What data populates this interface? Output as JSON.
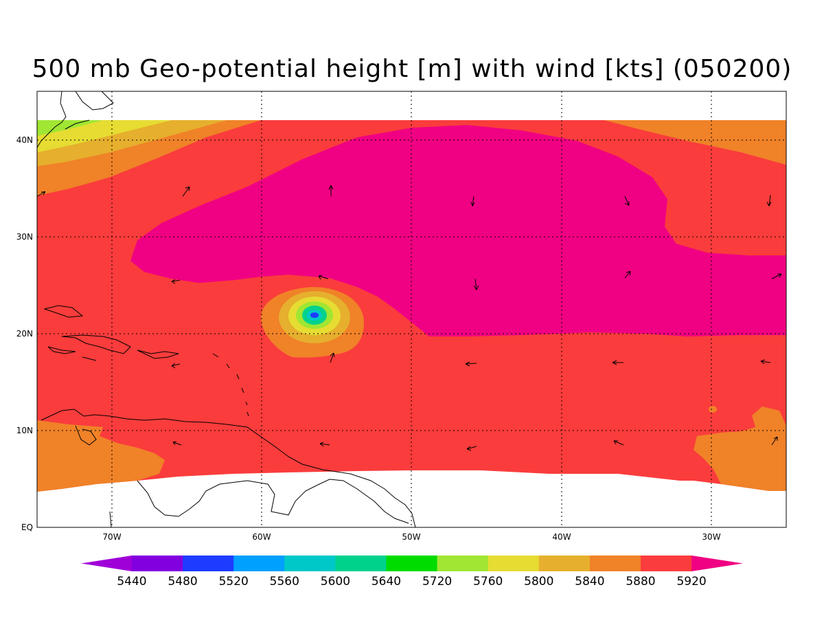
{
  "title": "500 mb Geo-potential height [m] with wind [kts] (050200)",
  "lat_labels": [
    "40N",
    "30N",
    "20N",
    "10N",
    "EQ"
  ],
  "lon_labels": [
    "70W",
    "60W",
    "50W",
    "40W",
    "30W"
  ],
  "colorbar": {
    "labels": [
      "5440",
      "5480",
      "5520",
      "5560",
      "5600",
      "5640",
      "5720",
      "5760",
      "5800",
      "5840",
      "5880",
      "5920"
    ],
    "colors": [
      "#a000d8",
      "#8200e0",
      "#1e3cff",
      "#00a0ff",
      "#00c8c8",
      "#00d28c",
      "#00dc00",
      "#a0e632",
      "#e6dc32",
      "#e6af2d",
      "#f08228",
      "#fa3c3c",
      "#f00082"
    ]
  },
  "field_colors": {
    "c5920": "#f00082",
    "c5880": "#fa3c3c",
    "c5840": "#f08228",
    "c5800": "#e6af2d",
    "c5760": "#e6dc32",
    "c5720": "#a0e632",
    "c5640": "#00d28c",
    "c5600": "#00c8c8",
    "c5520": "#1e3cff"
  }
}
